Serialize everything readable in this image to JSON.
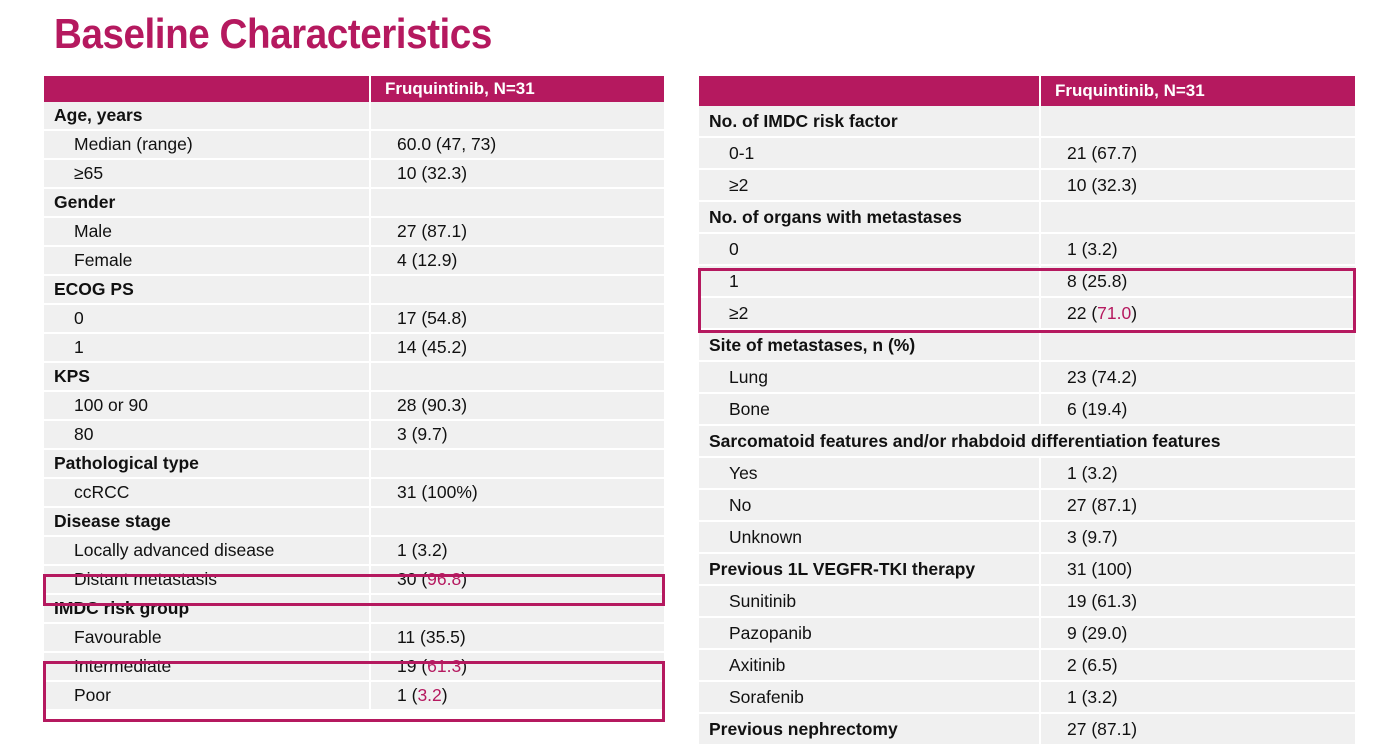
{
  "title": "Baseline Characteristics",
  "left_table": {
    "header": [
      "",
      "Fruquintinib, N=31"
    ],
    "rows": [
      {
        "label": "Age, years",
        "value": "",
        "type": "category"
      },
      {
        "label": "Median (range)",
        "value": "60.0 (47, 73)",
        "type": "sub"
      },
      {
        "label": "≥65",
        "value": "10 (32.3)",
        "type": "sub"
      },
      {
        "label": "Gender",
        "value": "",
        "type": "category"
      },
      {
        "label": "Male",
        "value": "27 (87.1)",
        "type": "sub"
      },
      {
        "label": "Female",
        "value": "4 (12.9)",
        "type": "sub"
      },
      {
        "label": "ECOG PS",
        "value": "",
        "type": "category"
      },
      {
        "label": "0",
        "value": "17 (54.8)",
        "type": "sub"
      },
      {
        "label": "1",
        "value": "14 (45.2)",
        "type": "sub"
      },
      {
        "label": "KPS",
        "value": "",
        "type": "category"
      },
      {
        "label": "100 or 90",
        "value": "28 (90.3)",
        "type": "sub"
      },
      {
        "label": "80",
        "value": "3 (9.7)",
        "type": "sub"
      },
      {
        "label": "Pathological type",
        "value": "",
        "type": "category"
      },
      {
        "label": "ccRCC",
        "value": "31 (100%)",
        "type": "sub"
      },
      {
        "label": "Disease stage",
        "value": "",
        "type": "category"
      },
      {
        "label": "Locally advanced disease",
        "value": "1 (3.2)",
        "type": "sub"
      },
      {
        "label": "Distant metastasis",
        "value_prefix": "30 (",
        "value_hl": "96.8",
        "value_suffix": ")",
        "type": "sub"
      },
      {
        "label": "IMDC risk group",
        "value": "",
        "type": "category"
      },
      {
        "label": "Favourable",
        "value": "11 (35.5)",
        "type": "sub"
      },
      {
        "label": "Intermediate",
        "value_prefix": "19 (",
        "value_hl": "61.3",
        "value_suffix": ")",
        "type": "sub"
      },
      {
        "label": "Poor",
        "value_prefix": "1 (",
        "value_hl": "3.2",
        "value_suffix": ")",
        "type": "sub"
      }
    ]
  },
  "right_table": {
    "header": [
      "",
      "Fruquintinib, N=31"
    ],
    "rows": [
      {
        "label": "No. of IMDC risk factor",
        "value": "",
        "type": "category"
      },
      {
        "label": "0-1",
        "value": "21 (67.7)",
        "type": "sub"
      },
      {
        "label": "≥2",
        "value": "10 (32.3)",
        "type": "sub"
      },
      {
        "label": "No. of organs with metastases",
        "value": "",
        "type": "category"
      },
      {
        "label": "0",
        "value": "1 (3.2)",
        "type": "sub"
      },
      {
        "label": "1",
        "value": "8 (25.8)",
        "type": "sub"
      },
      {
        "label": "≥2",
        "value_prefix": "22 (",
        "value_hl": "71.0",
        "value_suffix": ")",
        "type": "sub"
      },
      {
        "label": "Site of metastases, n (%)",
        "value": "",
        "type": "category"
      },
      {
        "label": "Lung",
        "value": "23 (74.2)",
        "type": "sub"
      },
      {
        "label": "Bone",
        "value": "6 (19.4)",
        "type": "sub"
      },
      {
        "label": "Sarcomatoid features and/or rhabdoid differentiation features",
        "value": "",
        "type": "category",
        "span": true
      },
      {
        "label": "Yes",
        "value": "1 (3.2)",
        "type": "sub"
      },
      {
        "label": "No",
        "value": "27 (87.1)",
        "type": "sub"
      },
      {
        "label": "Unknown",
        "value": "3 (9.7)",
        "type": "sub"
      },
      {
        "label": "Previous 1L VEGFR-TKI therapy",
        "value": "31 (100)",
        "type": "category"
      },
      {
        "label": "Sunitinib",
        "value": "19 (61.3)",
        "type": "sub"
      },
      {
        "label": "Pazopanib",
        "value": "9 (29.0)",
        "type": "sub"
      },
      {
        "label": "Axitinib",
        "value": "2 (6.5)",
        "type": "sub"
      },
      {
        "label": "Sorafenib",
        "value": "1 (3.2)",
        "type": "sub"
      },
      {
        "label": "Previous nephrectomy",
        "value": "27 (87.1)",
        "type": "category"
      }
    ]
  }
}
